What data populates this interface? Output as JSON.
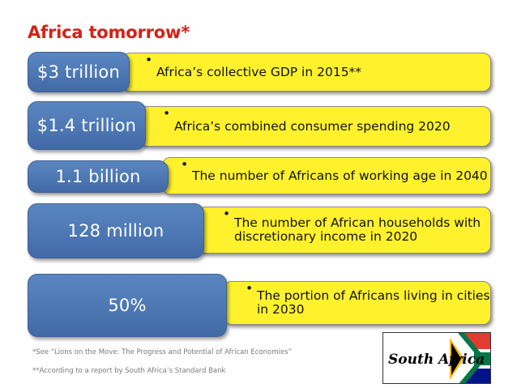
{
  "title": "Africa tomorrow*",
  "rows": [
    {
      "figure": "$3 trillion",
      "bullet": "•",
      "text": "Africa’s collective GDP in 2015**"
    },
    {
      "figure": "$1.4 trillion",
      "bullet": "•",
      "text": "Africa’s combined consumer spending 2020"
    },
    {
      "figure": "1.1 billion",
      "bullet": "•",
      "text": "The number of Africans of working age in 2040"
    },
    {
      "figure": "128 million",
      "bullet": "•",
      "text": "The number of African households with discretionary income in 2020"
    },
    {
      "figure": "50%",
      "bullet": "•",
      "text": "The portion of Africans living in cities in 2030"
    }
  ],
  "footnotes": {
    "one": "*See “Lions on the Move: The Progress and Potential of African Economies”",
    "two": "**According to a report by South Africa’s Standard Bank"
  },
  "logo": {
    "text": "South Africa",
    "colors": {
      "red": "#e03c31",
      "blue": "#001489",
      "green": "#007749",
      "gold": "#ffb81c",
      "black": "#000000"
    }
  },
  "colors": {
    "title": "#d32216",
    "yellow": "#fff22c",
    "blue": "#4b76b2"
  }
}
